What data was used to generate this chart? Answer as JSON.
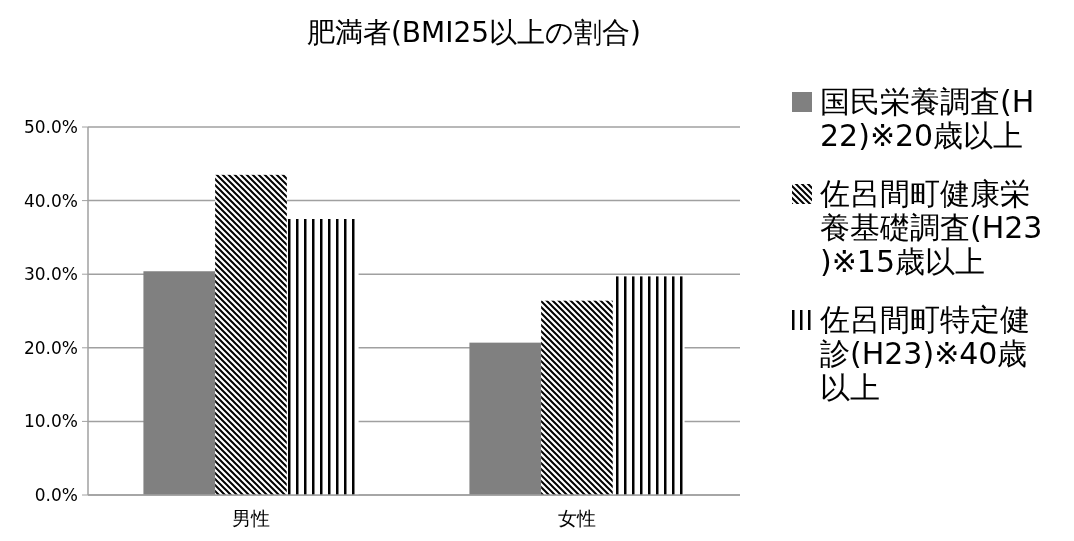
{
  "chart_data": {
    "type": "bar",
    "title": "肥満者(BMI25以上の割合)",
    "categories": [
      "男性",
      "女性"
    ],
    "series": [
      {
        "name": "国民栄養調査(H22)※20歳以上",
        "color": "#808080",
        "values": [
          30.4,
          20.7
        ]
      },
      {
        "name": "佐呂間町健康栄養基礎調査(H23)※15歳以上",
        "color": "#000000",
        "values": [
          43.5,
          26.4
        ]
      },
      {
        "name": "佐呂間町特定健診(H23)※40歳以上",
        "color": "#000000",
        "values": [
          37.5,
          29.7
        ]
      }
    ],
    "ylim": [
      0,
      50
    ],
    "yticks": [
      {
        "value": 0,
        "label": "0.0%"
      },
      {
        "value": 10,
        "label": "10.0%"
      },
      {
        "value": 20,
        "label": "20.0%"
      },
      {
        "value": 30,
        "label": "30.0%"
      },
      {
        "value": 40,
        "label": "40.0%"
      },
      {
        "value": 50,
        "label": "50.0%"
      }
    ],
    "grid": "y",
    "legend": "right"
  }
}
